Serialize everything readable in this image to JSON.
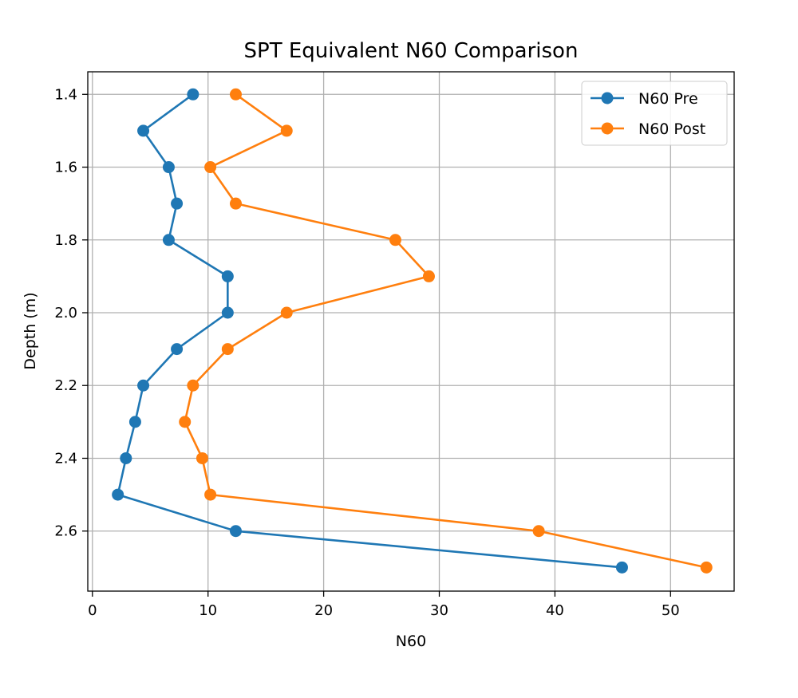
{
  "chart_data": {
    "type": "line",
    "title": "SPT Equivalent N60 Comparison",
    "xlabel": "N60",
    "ylabel": "Depth (m)",
    "xlim": [
      -0.4,
      55.5
    ],
    "ylim": [
      2.765,
      1.338
    ],
    "y_inverted": true,
    "grid": true,
    "legend_position": "top-right",
    "xticks": [
      0,
      10,
      20,
      30,
      40,
      50
    ],
    "yticks": [
      1.4,
      1.6,
      1.8,
      2.0,
      2.2,
      2.4,
      2.6
    ],
    "ytick_labels": [
      "1.4",
      "1.6",
      "1.8",
      "2.0",
      "2.2",
      "2.4",
      "2.6"
    ],
    "depth": [
      1.4,
      1.5,
      1.6,
      1.7,
      1.8,
      1.9,
      2.0,
      2.1,
      2.2,
      2.3,
      2.4,
      2.5,
      2.6,
      2.7
    ],
    "series": [
      {
        "name": "N60 Pre",
        "color": "#1f77b4",
        "values": [
          8.7,
          4.4,
          6.6,
          7.3,
          6.6,
          11.7,
          11.7,
          7.3,
          4.4,
          3.7,
          2.9,
          2.2,
          12.4,
          45.8
        ]
      },
      {
        "name": "N60 Post",
        "color": "#ff7f0e",
        "values": [
          12.4,
          16.8,
          10.2,
          12.4,
          26.2,
          29.1,
          16.8,
          11.7,
          8.7,
          8.0,
          9.5,
          10.2,
          38.6,
          53.1
        ]
      }
    ]
  }
}
